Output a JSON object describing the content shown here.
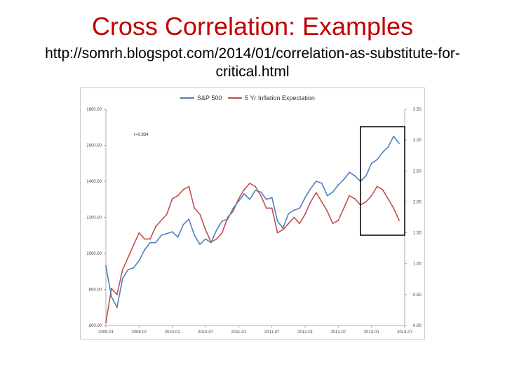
{
  "slide": {
    "title": "Cross Correlation: Examples",
    "subtitle": "http://somrh.blogspot.com/2014/01/correlation-as-substitute-for-critical.html"
  },
  "colors": {
    "title": "#c00000",
    "sp500": "#4f81bd",
    "inflation": "#c0504d",
    "highlight_box": "#000000"
  },
  "chart_data": {
    "type": "line",
    "title": "",
    "legend_position": "top-center",
    "annotation": "r=0.834",
    "highlight": {
      "x_range": [
        "2012-11",
        "2013-07"
      ],
      "label": ""
    },
    "x_ticks": [
      "2009-01",
      "2009-07",
      "2010-01",
      "2010-07",
      "2011-01",
      "2011-07",
      "2012-01",
      "2012-07",
      "2013-01",
      "2013-07"
    ],
    "y_left": {
      "ticks": [
        "600.00",
        "800.00",
        "1000.00",
        "1200.00",
        "1400.00",
        "1600.00",
        "1800.00"
      ],
      "range": [
        600,
        1800
      ]
    },
    "y_right": {
      "ticks": [
        "0.00",
        "0.50",
        "1.00",
        "1.50",
        "2.00",
        "2.50",
        "3.00",
        "3.50"
      ],
      "range": [
        0,
        3.5
      ]
    },
    "grid": false,
    "series": [
      {
        "name": "S&P 500",
        "axis": "left",
        "color": "#4f81bd",
        "x": [
          "2009-01",
          "2009-02",
          "2009-03",
          "2009-04",
          "2009-05",
          "2009-06",
          "2009-07",
          "2009-08",
          "2009-09",
          "2009-10",
          "2009-11",
          "2009-12",
          "2010-01",
          "2010-02",
          "2010-03",
          "2010-04",
          "2010-05",
          "2010-06",
          "2010-07",
          "2010-08",
          "2010-09",
          "2010-10",
          "2010-11",
          "2010-12",
          "2011-01",
          "2011-02",
          "2011-03",
          "2011-04",
          "2011-05",
          "2011-06",
          "2011-07",
          "2011-08",
          "2011-09",
          "2011-10",
          "2011-11",
          "2011-12",
          "2012-01",
          "2012-02",
          "2012-03",
          "2012-04",
          "2012-05",
          "2012-06",
          "2012-07",
          "2012-08",
          "2012-09",
          "2012-10",
          "2012-11",
          "2012-12",
          "2013-01",
          "2013-02",
          "2013-03",
          "2013-04",
          "2013-05",
          "2013-06"
        ],
        "values": [
          930,
          760,
          700,
          860,
          910,
          920,
          960,
          1020,
          1060,
          1060,
          1100,
          1110,
          1120,
          1090,
          1160,
          1190,
          1100,
          1050,
          1080,
          1060,
          1130,
          1180,
          1190,
          1250,
          1290,
          1330,
          1300,
          1350,
          1340,
          1300,
          1310,
          1180,
          1140,
          1220,
          1240,
          1250,
          1310,
          1360,
          1400,
          1390,
          1320,
          1340,
          1380,
          1410,
          1450,
          1430,
          1400,
          1430,
          1500,
          1520,
          1560,
          1590,
          1650,
          1610
        ]
      },
      {
        "name": "5 Yr Inflation Expectation",
        "axis": "right",
        "color": "#c0504d",
        "x": [
          "2009-01",
          "2009-02",
          "2009-03",
          "2009-04",
          "2009-05",
          "2009-06",
          "2009-07",
          "2009-08",
          "2009-09",
          "2009-10",
          "2009-11",
          "2009-12",
          "2010-01",
          "2010-02",
          "2010-03",
          "2010-04",
          "2010-05",
          "2010-06",
          "2010-07",
          "2010-08",
          "2010-09",
          "2010-10",
          "2010-11",
          "2010-12",
          "2011-01",
          "2011-02",
          "2011-03",
          "2011-04",
          "2011-05",
          "2011-06",
          "2011-07",
          "2011-08",
          "2011-09",
          "2011-10",
          "2011-11",
          "2011-12",
          "2012-01",
          "2012-02",
          "2012-03",
          "2012-04",
          "2012-05",
          "2012-06",
          "2012-07",
          "2012-08",
          "2012-09",
          "2012-10",
          "2012-11",
          "2012-12",
          "2013-01",
          "2013-02",
          "2013-03",
          "2013-04",
          "2013-05",
          "2013-06"
        ],
        "values": [
          0.05,
          0.6,
          0.5,
          0.9,
          1.1,
          1.3,
          1.5,
          1.4,
          1.4,
          1.6,
          1.7,
          1.8,
          2.05,
          2.1,
          2.2,
          2.25,
          1.9,
          1.8,
          1.55,
          1.35,
          1.4,
          1.5,
          1.75,
          1.85,
          2.05,
          2.2,
          2.3,
          2.25,
          2.1,
          1.9,
          1.9,
          1.5,
          1.55,
          1.65,
          1.75,
          1.65,
          1.8,
          2.0,
          2.15,
          2.0,
          1.85,
          1.65,
          1.7,
          1.9,
          2.1,
          2.05,
          1.95,
          2.0,
          2.1,
          2.25,
          2.2,
          2.05,
          1.9,
          1.7
        ]
      }
    ]
  }
}
